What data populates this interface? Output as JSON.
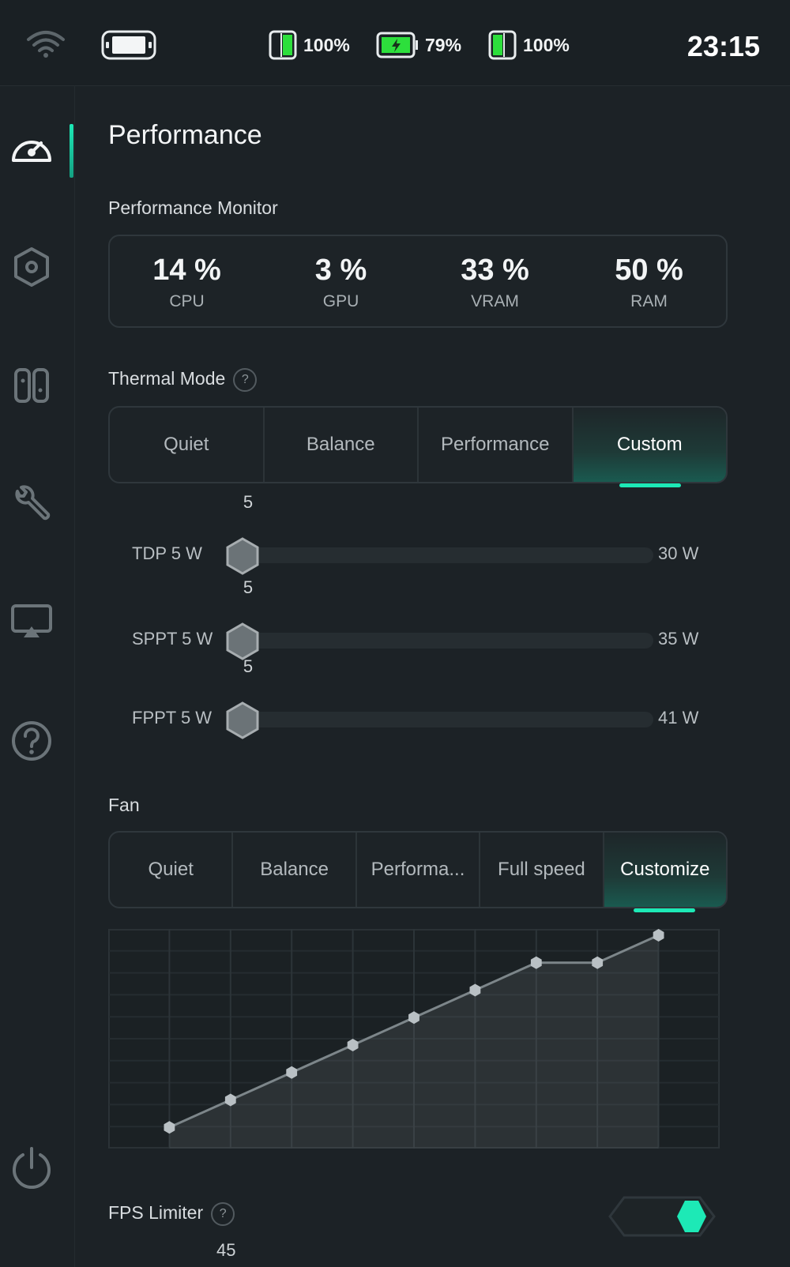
{
  "status_bar": {
    "left_controller": "100%",
    "battery": "79%",
    "right_controller": "100%",
    "time": "23:15"
  },
  "sidebar": {
    "items": [
      {
        "name": "performance",
        "icon": "speedometer-icon",
        "active": true
      },
      {
        "name": "settings",
        "icon": "hexagon-gear-icon",
        "active": false
      },
      {
        "name": "controllers",
        "icon": "joycon-icon",
        "active": false
      },
      {
        "name": "tools",
        "icon": "wrench-icon",
        "active": false
      },
      {
        "name": "display",
        "icon": "screen-cast-icon",
        "active": false
      },
      {
        "name": "help",
        "icon": "question-circle-icon",
        "active": false
      },
      {
        "name": "power",
        "icon": "power-icon",
        "active": false
      }
    ]
  },
  "page": {
    "title": "Performance"
  },
  "monitor": {
    "label": "Performance Monitor",
    "stats": [
      {
        "value": "14 %",
        "label": "CPU"
      },
      {
        "value": "3 %",
        "label": "GPU"
      },
      {
        "value": "33 %",
        "label": "VRAM"
      },
      {
        "value": "50 %",
        "label": "RAM"
      }
    ]
  },
  "thermal": {
    "label": "Thermal Mode",
    "help": "?",
    "modes": [
      "Quiet",
      "Balance",
      "Performance",
      "Custom"
    ],
    "selected": "Custom"
  },
  "sliders": [
    {
      "label": "TDP  5 W",
      "value": "5",
      "max": "30 W"
    },
    {
      "label": "SPPT 5 W",
      "value": "5",
      "max": "35 W"
    },
    {
      "label": "FPPT 5 W",
      "value": "5",
      "max": "41 W"
    }
  ],
  "fan": {
    "label": "Fan",
    "modes": [
      "Quiet",
      "Balance",
      "Performa...",
      "Full speed",
      "Customize"
    ],
    "selected": "Customize",
    "curve": [
      0.1,
      0.2,
      0.3,
      0.4,
      0.5,
      0.6,
      0.7,
      0.7,
      0.8
    ]
  },
  "fps": {
    "label": "FPS Limiter",
    "help": "?",
    "value": "45",
    "enabled": true
  },
  "colors": {
    "accent": "#1de9b6",
    "background": "#1c2226",
    "battery_green": "#2ddf3c"
  }
}
